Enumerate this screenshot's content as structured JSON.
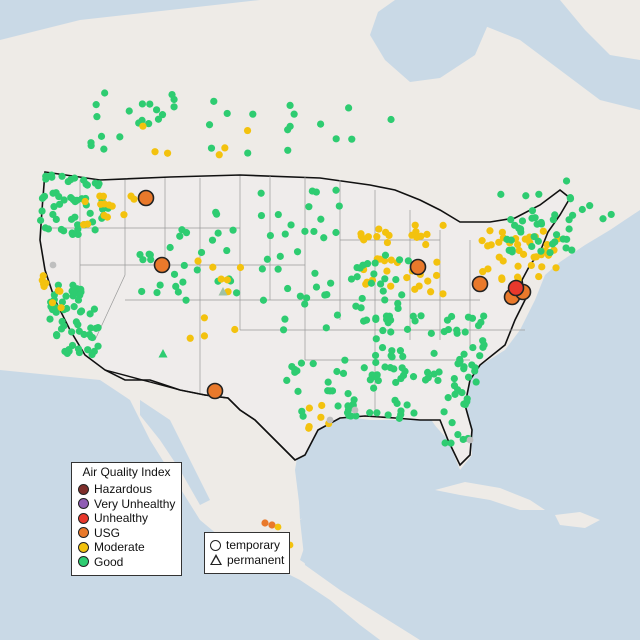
{
  "legend": {
    "title": "Air Quality Index",
    "categories": [
      {
        "label": "Hazardous",
        "color": "#7e2e2a"
      },
      {
        "label": "Very Unhealthy",
        "color": "#8f5db4"
      },
      {
        "label": "Unhealthy",
        "color": "#e8382c"
      },
      {
        "label": "USG",
        "color": "#e9792b"
      },
      {
        "label": "Moderate",
        "color": "#f3c20e"
      },
      {
        "label": "Good",
        "color": "#2ecc71"
      }
    ]
  },
  "shape_legend": {
    "temporary": "temporary",
    "permanent": "permanent"
  },
  "colors": {
    "ocean": "#c9d9e6",
    "land": "#eeebe7",
    "usa": "#efeceb",
    "border": "#111111",
    "state_lines": "#9a9a9a",
    "good": "#2ecc71",
    "moderate": "#f3c20e",
    "usg": "#e9792b",
    "unhealthy": "#e8382c",
    "no_data": "#bfbfbf"
  }
}
